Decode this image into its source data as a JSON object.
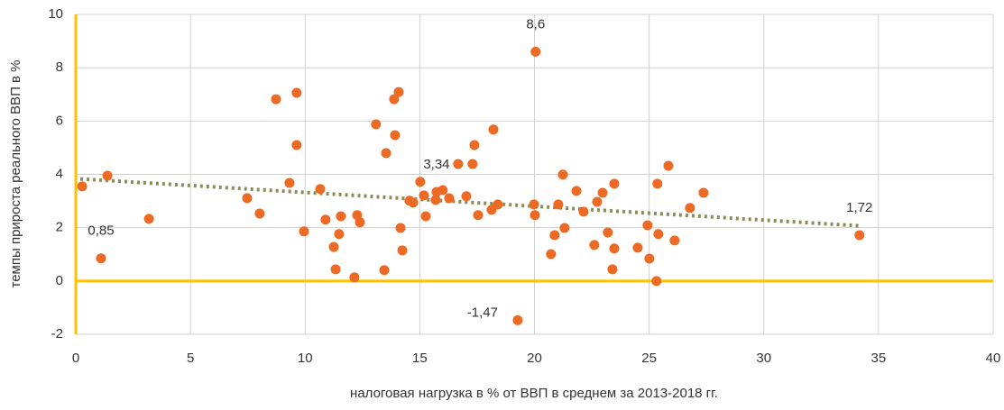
{
  "chart_data": {
    "type": "scatter",
    "xlabel": "налоговая нагрузка в % от ВВП в среднем за 2013-2018 гг.",
    "ylabel": "темпы прироста реального ВВП в %",
    "xlim": [
      0,
      40
    ],
    "ylim": [
      -2,
      10
    ],
    "xticks": [
      0,
      5,
      10,
      15,
      20,
      25,
      30,
      35,
      40
    ],
    "yticks": [
      -2,
      0,
      2,
      4,
      6,
      8,
      10
    ],
    "grid": true,
    "axis_color": "#ffc000",
    "trendline": {
      "color": "#8c8c5a",
      "x": [
        0.2,
        34.17
      ],
      "y": [
        3.83,
        2.07
      ]
    },
    "series": [
      {
        "color": "#ed6a24",
        "x": [
          0.28,
          1.1,
          1.38,
          3.19,
          7.47,
          8.02,
          8.73,
          9.32,
          9.63,
          9.63,
          9.95,
          10.66,
          10.89,
          11.25,
          11.33,
          11.48,
          11.56,
          12.15,
          12.27,
          12.39,
          13.09,
          13.45,
          13.53,
          13.88,
          13.92,
          14.08,
          14.16,
          14.24,
          14.55,
          14.71,
          15.02,
          15.18,
          15.26,
          15.69,
          15.73,
          16.0,
          16.28,
          16.67,
          17.03,
          17.3,
          17.38,
          17.54,
          18.13,
          18.21,
          18.4,
          19.27,
          19.98,
          20.02,
          20.05,
          20.72,
          20.88,
          21.04,
          21.24,
          21.31,
          21.83,
          22.14,
          22.61,
          22.73,
          22.97,
          23.2,
          23.4,
          23.48,
          23.48,
          24.5,
          24.93,
          25.01,
          25.32,
          25.36,
          25.4,
          25.84,
          26.11,
          26.78,
          27.37,
          34.17
        ],
        "values": [
          3.55,
          0.85,
          3.95,
          2.33,
          3.11,
          2.53,
          6.82,
          3.68,
          7.06,
          5.1,
          1.86,
          3.45,
          2.3,
          1.28,
          0.44,
          1.76,
          2.43,
          0.14,
          2.47,
          2.2,
          5.88,
          0.41,
          4.8,
          6.82,
          5.47,
          7.09,
          1.99,
          1.15,
          3.01,
          2.94,
          3.72,
          3.21,
          2.43,
          3.04,
          3.34,
          3.41,
          3.11,
          4.39,
          3.18,
          4.39,
          5.1,
          2.47,
          2.67,
          5.68,
          2.87,
          -1.47,
          2.87,
          2.47,
          8.6,
          1.01,
          1.72,
          2.87,
          3.99,
          1.99,
          3.38,
          2.6,
          1.35,
          2.97,
          3.31,
          1.82,
          0.44,
          3.65,
          1.22,
          1.25,
          2.09,
          0.84,
          0,
          3.65,
          1.76,
          4.32,
          1.52,
          2.74,
          3.31,
          1.72
        ],
        "value_labels": [
          null,
          "0,85",
          null,
          null,
          null,
          null,
          null,
          null,
          null,
          null,
          null,
          null,
          null,
          null,
          null,
          null,
          null,
          null,
          null,
          null,
          null,
          null,
          null,
          null,
          null,
          null,
          null,
          null,
          null,
          null,
          null,
          null,
          null,
          null,
          "3,34",
          null,
          null,
          null,
          null,
          null,
          null,
          null,
          null,
          null,
          null,
          "-1,47",
          null,
          null,
          "8,6",
          null,
          null,
          null,
          null,
          null,
          null,
          null,
          null,
          null,
          null,
          null,
          null,
          null,
          null,
          null,
          null,
          null,
          null,
          null,
          null,
          null,
          null,
          null,
          null,
          "1,72"
        ]
      }
    ]
  }
}
